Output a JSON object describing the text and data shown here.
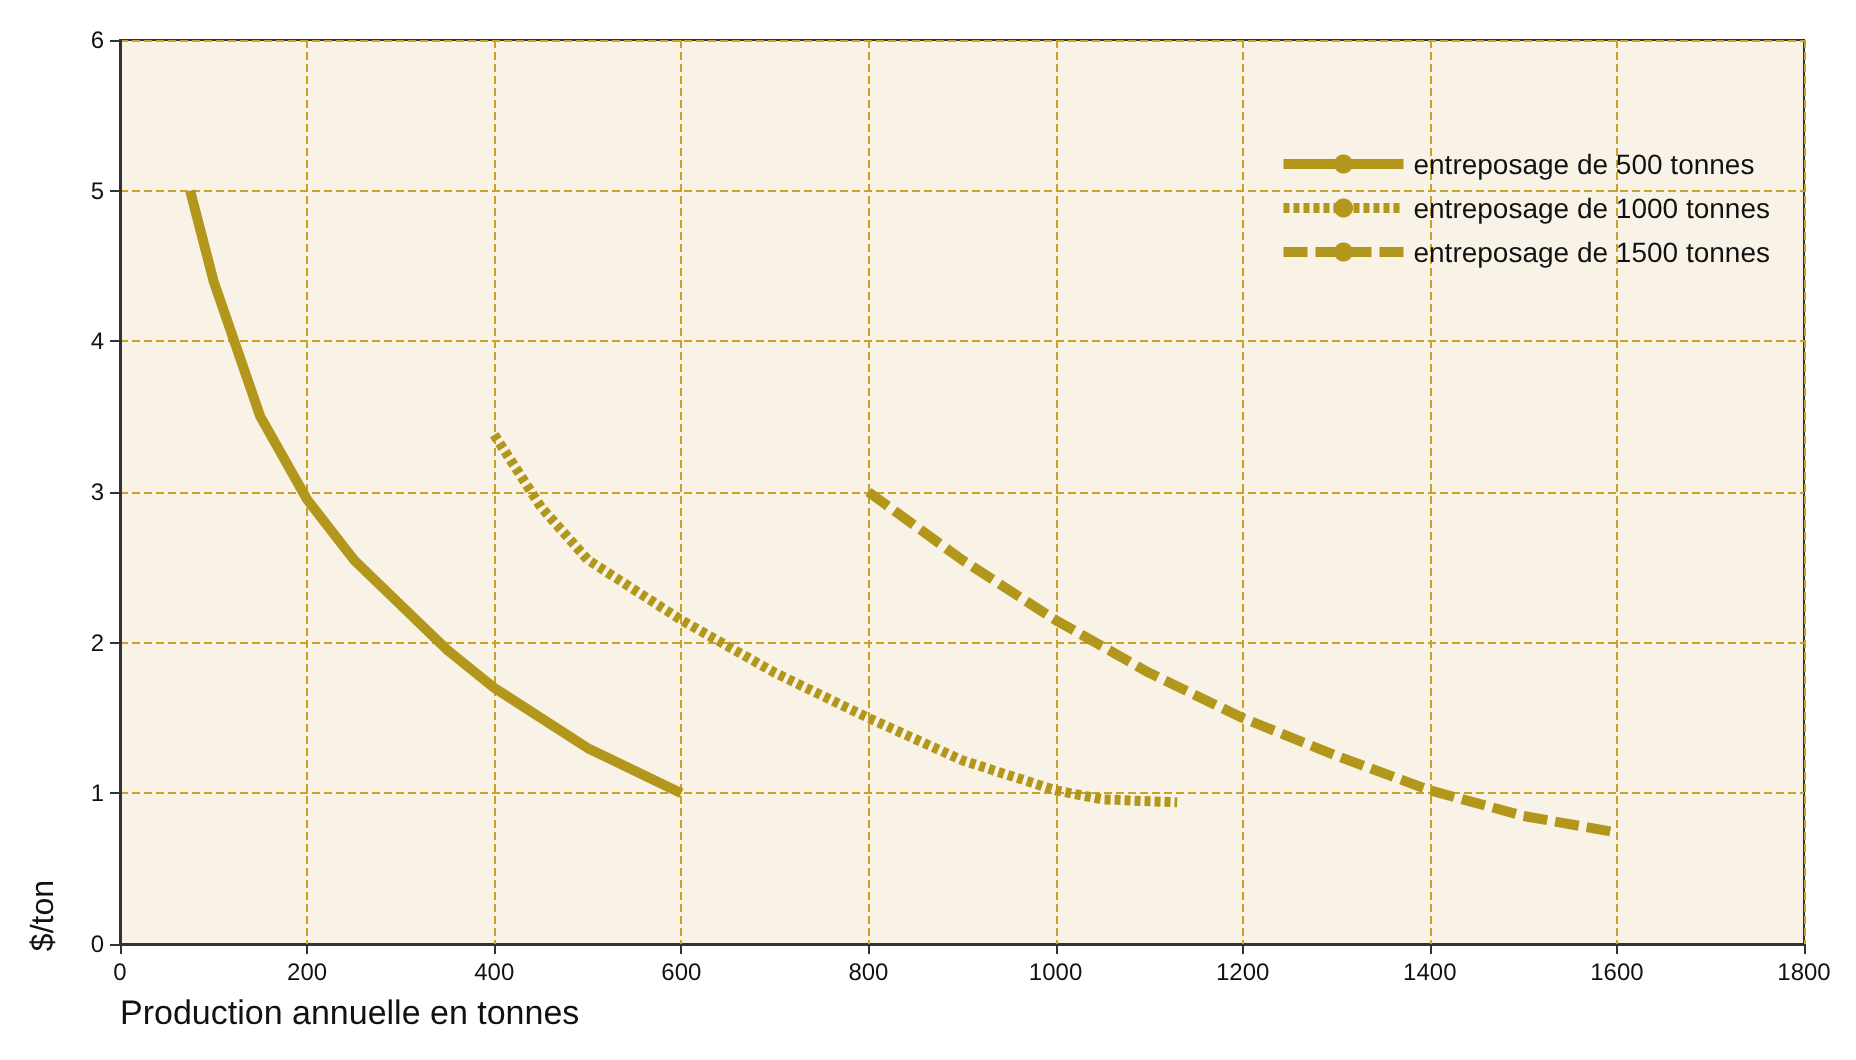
{
  "chart_data": {
    "type": "line",
    "xlabel": "Production annuelle en tonnes",
    "ylabel": "$/ton",
    "xlim": [
      0,
      1800
    ],
    "xticks": [
      0,
      200,
      400,
      600,
      800,
      1000,
      1200,
      1400,
      1600,
      1800
    ],
    "ylim": [
      0,
      6
    ],
    "yticks": [
      0,
      1,
      2,
      3,
      4,
      5,
      6
    ],
    "grid": true,
    "legend": "top right",
    "marker": "none",
    "series": [
      {
        "name": "entreposage de 500 tonnes",
        "color": "#b3961c",
        "line_style": "solid",
        "x": [
          75,
          100,
          150,
          200,
          250,
          300,
          350,
          400,
          450,
          500,
          550,
          600
        ],
        "values": [
          5,
          4.4,
          3.5,
          2.95,
          2.55,
          2.25,
          1.95,
          1.7,
          1.5,
          1.3,
          1.15,
          1.0
        ]
      },
      {
        "name": "entreposage de 1000 tonnes",
        "color": "#b3961c",
        "line_style": "dotted",
        "x": [
          400,
          450,
          500,
          600,
          700,
          800,
          900,
          1000,
          1050,
          1130
        ],
        "values": [
          3.38,
          2.9,
          2.55,
          2.15,
          1.8,
          1.5,
          1.22,
          1.02,
          0.96,
          0.94
        ]
      },
      {
        "name": "entreposage de 1500 tonnes",
        "color": "#b3961c",
        "line_style": "dashed",
        "x": [
          800,
          900,
          1000,
          1100,
          1200,
          1300,
          1400,
          1500,
          1600
        ],
        "values": [
          3.0,
          2.55,
          2.15,
          1.8,
          1.5,
          1.25,
          1.02,
          0.85,
          0.74
        ]
      }
    ]
  }
}
